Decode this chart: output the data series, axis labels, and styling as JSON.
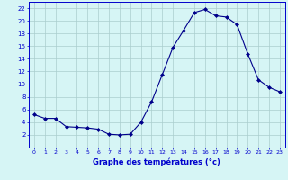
{
  "x": [
    0,
    1,
    2,
    3,
    4,
    5,
    6,
    7,
    8,
    9,
    10,
    11,
    12,
    13,
    14,
    15,
    16,
    17,
    18,
    19,
    20,
    21,
    22,
    23
  ],
  "y": [
    5.2,
    4.6,
    4.6,
    3.3,
    3.2,
    3.1,
    2.9,
    2.1,
    2.0,
    2.1,
    4.0,
    7.2,
    11.5,
    15.8,
    18.5,
    21.3,
    21.8,
    20.8,
    20.6,
    19.4,
    14.8,
    10.7,
    9.5,
    8.8
  ],
  "xlabel": "Graphe des températures (°c)",
  "ylim": [
    0,
    23
  ],
  "xlim": [
    -0.5,
    23.5
  ],
  "yticks": [
    2,
    4,
    6,
    8,
    10,
    12,
    14,
    16,
    18,
    20,
    22
  ],
  "xticks": [
    0,
    1,
    2,
    3,
    4,
    5,
    6,
    7,
    8,
    9,
    10,
    11,
    12,
    13,
    14,
    15,
    16,
    17,
    18,
    19,
    20,
    21,
    22,
    23
  ],
  "line_color": "#00008b",
  "marker_color": "#00008b",
  "bg_color": "#d6f5f5",
  "grid_color": "#aacece",
  "axis_color": "#0000cc",
  "xlabel_color": "#0000cc",
  "tick_color": "#0000cc"
}
